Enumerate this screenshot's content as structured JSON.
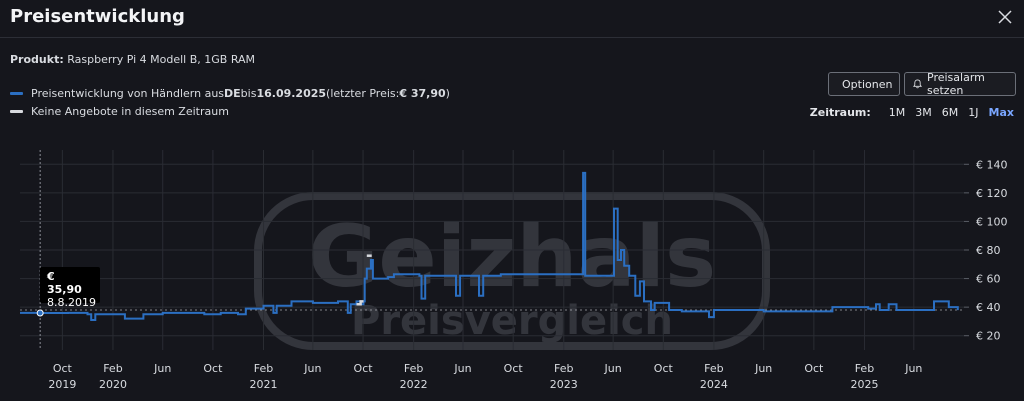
{
  "dialog": {
    "title": "Preisentwicklung"
  },
  "product": {
    "label": "Produkt:",
    "name": "Raspberry Pi 4 Modell B, 1GB RAM"
  },
  "legend": {
    "series_prefix": "Preisentwicklung von Händlern aus ",
    "country": "DE",
    "until_text": " bis ",
    "date": "16.09.2025",
    "last_price_prefix": " (letzter Preis: ",
    "last_price": "€ 37,90",
    "last_price_suffix": ")",
    "no_offers": "Keine Angebote in diesem Zeitraum",
    "series_color": "#2b6fc2",
    "no_offers_color": "#d7d9de"
  },
  "buttons": {
    "options": "Optionen",
    "price_alert": "Preisalarm setzen"
  },
  "zeitraum": {
    "label": "Zeitraum:",
    "options": [
      "1M",
      "3M",
      "6M",
      "1J",
      "Max"
    ],
    "active": "Max"
  },
  "tooltip": {
    "price": "€ 35,90",
    "date": "8.8.2019"
  },
  "watermark": {
    "brand": "Geizhals",
    "sub": "Preisvergleich"
  },
  "chart_data": {
    "type": "line",
    "x_unit": "date",
    "xlim": [
      "2019-06-20",
      "2025-10-01"
    ],
    "ylim": [
      10,
      150
    ],
    "yticks": [
      20,
      40,
      60,
      80,
      100,
      120,
      140
    ],
    "ytick_labels": [
      "€ 20",
      "€ 40",
      "€ 60",
      "€ 80",
      "€ 100",
      "€ 120",
      "€ 140"
    ],
    "xticks": [
      {
        "date": "2019-10-01",
        "label": "Oct",
        "year": "2019"
      },
      {
        "date": "2020-02-01",
        "label": "Feb",
        "year": "2020"
      },
      {
        "date": "2020-06-01",
        "label": "Jun",
        "year": ""
      },
      {
        "date": "2020-10-01",
        "label": "Oct",
        "year": ""
      },
      {
        "date": "2021-02-01",
        "label": "Feb",
        "year": "2021"
      },
      {
        "date": "2021-06-01",
        "label": "Jun",
        "year": ""
      },
      {
        "date": "2021-10-01",
        "label": "Oct",
        "year": ""
      },
      {
        "date": "2022-02-01",
        "label": "Feb",
        "year": "2022"
      },
      {
        "date": "2022-06-01",
        "label": "Jun",
        "year": ""
      },
      {
        "date": "2022-10-01",
        "label": "Oct",
        "year": ""
      },
      {
        "date": "2023-02-01",
        "label": "Feb",
        "year": "2023"
      },
      {
        "date": "2023-06-01",
        "label": "Jun",
        "year": ""
      },
      {
        "date": "2023-10-01",
        "label": "Oct",
        "year": ""
      },
      {
        "date": "2024-02-01",
        "label": "Feb",
        "year": "2024"
      },
      {
        "date": "2024-06-01",
        "label": "Jun",
        "year": ""
      },
      {
        "date": "2024-10-01",
        "label": "Oct",
        "year": ""
      },
      {
        "date": "2025-02-01",
        "label": "Feb",
        "year": "2025"
      },
      {
        "date": "2025-06-01",
        "label": "Jun",
        "year": ""
      }
    ],
    "grid": true,
    "reference_line": 38,
    "hover_date": "2019-08-08",
    "series": [
      {
        "color": "#2b6fc2",
        "points": [
          [
            "2019-06-20",
            36
          ],
          [
            "2019-08-08",
            35.9
          ],
          [
            "2019-10-15",
            36
          ],
          [
            "2019-12-01",
            35
          ],
          [
            "2019-12-10",
            31
          ],
          [
            "2019-12-20",
            35
          ],
          [
            "2020-03-01",
            32
          ],
          [
            "2020-04-15",
            35
          ],
          [
            "2020-06-01",
            36
          ],
          [
            "2020-09-10",
            35
          ],
          [
            "2020-10-20",
            36
          ],
          [
            "2020-12-01",
            35
          ],
          [
            "2020-12-20",
            39
          ],
          [
            "2021-02-01",
            41
          ],
          [
            "2021-02-15",
            41
          ],
          [
            "2021-02-25",
            36
          ],
          [
            "2021-03-05",
            41
          ],
          [
            "2021-04-10",
            44
          ],
          [
            "2021-06-01",
            43
          ],
          [
            "2021-08-01",
            44
          ],
          [
            "2021-08-25",
            36
          ],
          [
            "2021-09-01",
            42
          ],
          [
            "2021-09-15",
            44
          ],
          [
            "2021-09-25",
            42
          ],
          [
            "2021-10-02",
            44
          ],
          [
            "2021-10-05",
            60
          ],
          [
            "2021-10-10",
            67
          ],
          [
            "2021-10-20",
            73
          ],
          [
            "2021-10-25",
            60
          ],
          [
            "2021-12-01",
            61
          ],
          [
            "2021-12-15",
            63
          ],
          [
            "2022-02-15",
            62
          ],
          [
            "2022-02-20",
            46
          ],
          [
            "2022-03-01",
            62
          ],
          [
            "2022-05-10",
            62
          ],
          [
            "2022-05-15",
            48
          ],
          [
            "2022-05-25",
            62
          ],
          [
            "2022-07-10",
            48
          ],
          [
            "2022-07-20",
            62
          ],
          [
            "2022-09-01",
            63
          ],
          [
            "2023-03-15",
            63
          ],
          [
            "2023-03-20",
            134
          ],
          [
            "2023-03-25",
            62
          ],
          [
            "2023-05-25",
            62
          ],
          [
            "2023-06-03",
            109
          ],
          [
            "2023-06-12",
            73
          ],
          [
            "2023-06-20",
            80
          ],
          [
            "2023-06-28",
            69
          ],
          [
            "2023-07-10",
            62
          ],
          [
            "2023-07-25",
            48
          ],
          [
            "2023-08-05",
            58
          ],
          [
            "2023-08-15",
            44
          ],
          [
            "2023-09-01",
            38
          ],
          [
            "2023-09-10",
            43
          ],
          [
            "2023-10-01",
            43
          ],
          [
            "2023-10-15",
            38
          ],
          [
            "2023-11-15",
            37
          ],
          [
            "2024-01-20",
            33
          ],
          [
            "2024-02-01",
            38
          ],
          [
            "2024-06-01",
            37
          ],
          [
            "2024-11-01",
            37
          ],
          [
            "2024-11-15",
            40
          ],
          [
            "2025-01-10",
            40
          ],
          [
            "2025-02-10",
            39
          ],
          [
            "2025-03-01",
            42
          ],
          [
            "2025-03-10",
            38
          ],
          [
            "2025-04-01",
            42
          ],
          [
            "2025-04-20",
            38
          ],
          [
            "2025-07-15",
            38
          ],
          [
            "2025-07-20",
            44
          ],
          [
            "2025-08-20",
            44
          ],
          [
            "2025-08-25",
            40
          ],
          [
            "2025-09-16",
            37.9
          ]
        ]
      },
      {
        "color": "#d7d9de",
        "points": [
          [
            "2021-09-15",
            42
          ],
          [
            "2021-09-25",
            44
          ],
          [
            "2021-10-02",
            44
          ]
        ]
      },
      {
        "color": "#d7d9de",
        "points": [
          [
            "2021-10-10",
            76
          ],
          [
            "2021-10-22",
            76
          ]
        ]
      }
    ]
  }
}
